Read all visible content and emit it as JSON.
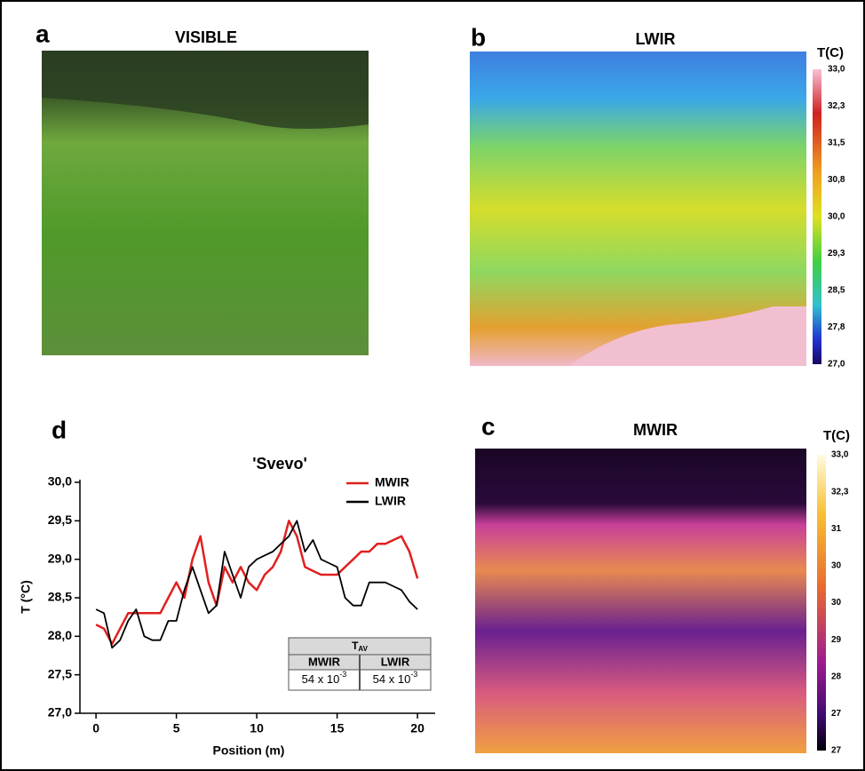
{
  "panel_a": {
    "letter": "a",
    "title": "VISIBLE"
  },
  "panel_b": {
    "letter": "b",
    "title": "LWIR",
    "colorbar": {
      "label": "T(C)",
      "ticks": [
        "33,0",
        "32,3",
        "31,5",
        "30,8",
        "30,0",
        "29,3",
        "28,5",
        "27,8",
        "27,0"
      ]
    }
  },
  "panel_c": {
    "letter": "c",
    "title": "MWIR",
    "colorbar": {
      "label": "T(C)",
      "ticks": [
        "33,0",
        "32,3",
        "31",
        "30",
        "30",
        "29",
        "28",
        "27",
        "27"
      ]
    }
  },
  "chart_data": {
    "type": "line",
    "letter": "d",
    "title": "'Svevo'",
    "x_label": "Position (m)",
    "y_label": "T (°C)",
    "xlim": [
      -1,
      21.1
    ],
    "ylim": [
      27,
      30
    ],
    "xticks": [
      0,
      5,
      10,
      15,
      20
    ],
    "yticks": [
      {
        "value": 27,
        "label": "27,0"
      },
      {
        "value": 27.5,
        "label": "27,5"
      },
      {
        "value": 28,
        "label": "28,0"
      },
      {
        "value": 28.5,
        "label": "28,5"
      },
      {
        "value": 29,
        "label": "29,0"
      },
      {
        "value": 29.5,
        "label": "29,5"
      },
      {
        "value": 30,
        "label": "30,0"
      }
    ],
    "legend": "upper right",
    "x": [
      0,
      0.5,
      1,
      1.5,
      2,
      2.5,
      3,
      3.5,
      4,
      4.5,
      5,
      5.5,
      6,
      6.5,
      7,
      7.5,
      8,
      8.5,
      9,
      9.5,
      10,
      10.5,
      11,
      11.5,
      12,
      12.5,
      13,
      13.5,
      14,
      14.5,
      15,
      15.5,
      16,
      16.5,
      17,
      17.5,
      18,
      18.5,
      19,
      19.5,
      20
    ],
    "series": [
      {
        "name": "MWIR",
        "color": "#e02020",
        "values": [
          28.15,
          28.1,
          27.9,
          28.1,
          28.3,
          28.3,
          28.3,
          28.3,
          28.3,
          28.5,
          28.7,
          28.5,
          29.0,
          29.3,
          28.7,
          28.4,
          28.9,
          28.7,
          28.9,
          28.7,
          28.6,
          28.8,
          28.9,
          29.1,
          29.5,
          29.3,
          28.9,
          28.85,
          28.8,
          28.8,
          28.8,
          28.9,
          29.0,
          29.1,
          29.1,
          29.2,
          29.2,
          29.25,
          29.3,
          29.1,
          28.75
        ]
      },
      {
        "name": "LWIR",
        "color": "#000000",
        "values": [
          28.35,
          28.3,
          27.85,
          27.95,
          28.2,
          28.35,
          28.0,
          27.95,
          27.95,
          28.2,
          28.2,
          28.6,
          28.9,
          28.6,
          28.3,
          28.4,
          29.1,
          28.8,
          28.5,
          28.9,
          29.0,
          29.05,
          29.1,
          29.2,
          29.3,
          29.5,
          29.1,
          29.25,
          29.0,
          28.95,
          28.9,
          28.5,
          28.4,
          28.4,
          28.7,
          28.7,
          28.7,
          28.65,
          28.6,
          28.45,
          28.35
        ]
      }
    ],
    "table": {
      "header_main": "T",
      "header_sub": "AV",
      "columns": [
        "MWIR",
        "LWIR"
      ],
      "cells": [
        {
          "mantissa": "54 x 10",
          "exponent": "-3"
        },
        {
          "mantissa": "54 x 10",
          "exponent": "-3"
        }
      ]
    }
  }
}
